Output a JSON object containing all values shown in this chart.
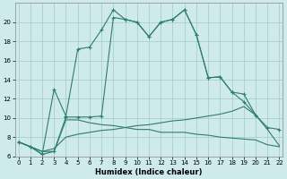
{
  "xlabel": "Humidex (Indice chaleur)",
  "bg_color": "#ceeaea",
  "grid_color": "#aacece",
  "line_color": "#2e7d6e",
  "xlim": [
    -0.3,
    22.3
  ],
  "ylim": [
    6,
    22
  ],
  "yticks": [
    6,
    8,
    10,
    12,
    14,
    16,
    18,
    20
  ],
  "xticks": [
    0,
    1,
    2,
    3,
    4,
    5,
    6,
    7,
    8,
    9,
    10,
    11,
    12,
    13,
    14,
    15,
    16,
    17,
    18,
    19,
    20,
    21,
    22
  ],
  "curve1_x": [
    0,
    1,
    2,
    3,
    4,
    5,
    6,
    7,
    8,
    9,
    10,
    11,
    12,
    13,
    14,
    15,
    16,
    17,
    18,
    19,
    20
  ],
  "curve1_y": [
    7.5,
    7.0,
    6.2,
    13.0,
    10.2,
    17.2,
    17.4,
    19.2,
    21.3,
    20.3,
    20.0,
    18.5,
    20.0,
    20.3,
    21.3,
    18.7,
    14.2,
    14.3,
    12.7,
    11.7,
    10.3
  ],
  "curve2_x": [
    0,
    1,
    2,
    3,
    4,
    5,
    6,
    7,
    8,
    9,
    10,
    11,
    12,
    13,
    14,
    15,
    16,
    17,
    18,
    19,
    20,
    21,
    22
  ],
  "curve2_y": [
    7.5,
    7.0,
    6.2,
    6.5,
    10.1,
    10.1,
    10.1,
    10.2,
    20.5,
    20.3,
    20.0,
    18.5,
    20.0,
    20.3,
    21.3,
    18.7,
    14.2,
    14.3,
    12.7,
    12.5,
    10.3,
    9.0,
    8.8
  ],
  "line3_x": [
    0,
    1,
    2,
    3,
    4,
    5,
    6,
    7,
    8,
    9,
    10,
    11,
    12,
    13,
    14,
    15,
    16,
    17,
    18,
    19,
    20,
    21,
    22
  ],
  "line3_y": [
    7.5,
    7.0,
    6.5,
    6.5,
    9.8,
    9.8,
    9.5,
    9.3,
    9.2,
    9.0,
    8.8,
    8.8,
    8.5,
    8.5,
    8.5,
    8.3,
    8.2,
    8.0,
    7.9,
    7.8,
    7.7,
    7.2,
    7.0
  ],
  "line4_x": [
    0,
    1,
    2,
    3,
    4,
    5,
    6,
    7,
    8,
    9,
    10,
    11,
    12,
    13,
    14,
    15,
    16,
    17,
    18,
    19,
    20,
    21,
    22
  ],
  "line4_y": [
    7.5,
    7.0,
    6.5,
    6.8,
    8.0,
    8.3,
    8.5,
    8.7,
    8.8,
    9.0,
    9.2,
    9.3,
    9.5,
    9.7,
    9.8,
    10.0,
    10.2,
    10.4,
    10.7,
    11.2,
    10.3,
    8.8,
    7.1
  ]
}
